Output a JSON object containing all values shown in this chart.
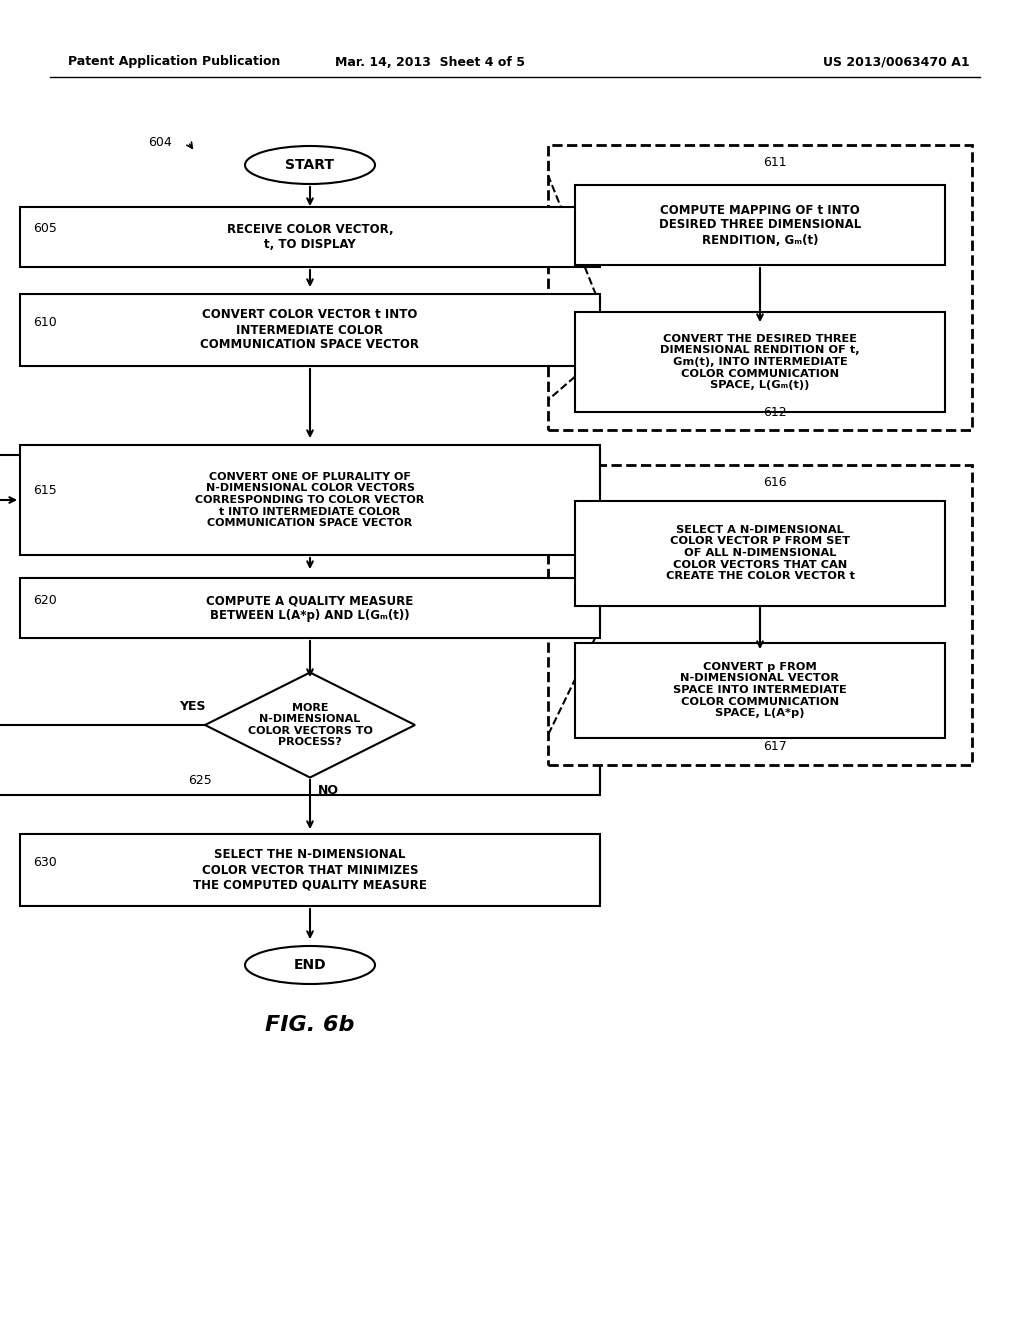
{
  "title_left": "Patent Application Publication",
  "title_mid": "Mar. 14, 2013  Sheet 4 of 5",
  "title_right": "US 2013/0063470 A1",
  "fig_label": "FIG. 6b",
  "background": "#ffffff"
}
